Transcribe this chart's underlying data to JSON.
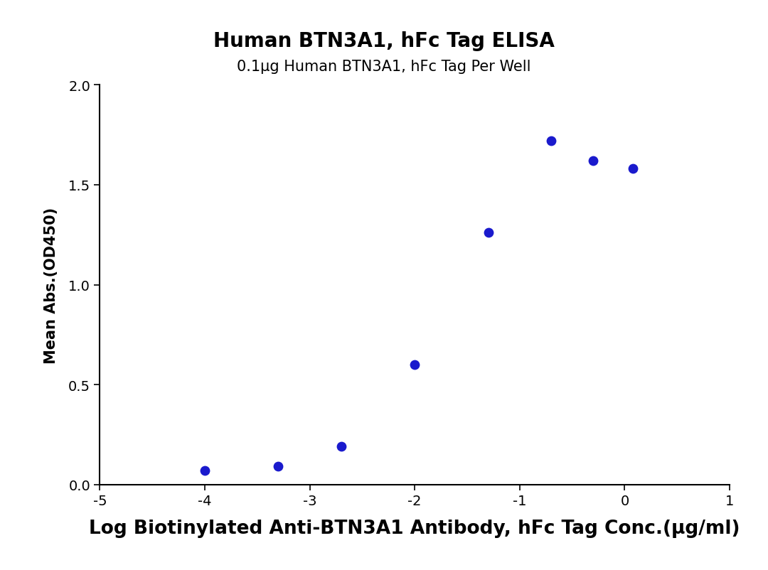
{
  "title": "Human BTN3A1, hFc Tag ELISA",
  "subtitle": "0.1μg Human BTN3A1, hFc Tag Per Well",
  "xlabel": "Log Biotinylated Anti-BTN3A1 Antibody, hFc Tag Conc.(μg/ml)",
  "ylabel": "Mean Abs.(OD450)",
  "data_x": [
    -4,
    -3.3,
    -2.7,
    -2,
    -1.3,
    -0.7,
    -0.3,
    0.08
  ],
  "data_y": [
    0.07,
    0.09,
    0.19,
    0.6,
    1.26,
    1.72,
    1.62,
    1.58
  ],
  "xlim": [
    -5,
    1
  ],
  "ylim": [
    0,
    2.0
  ],
  "xticks": [
    -5,
    -4,
    -3,
    -2,
    -1,
    0,
    1
  ],
  "yticks": [
    0.0,
    0.5,
    1.0,
    1.5,
    2.0
  ],
  "curve_color": "#1a1acd",
  "dot_color": "#1a1acd",
  "background_color": "#ffffff",
  "title_fontsize": 20,
  "subtitle_fontsize": 15,
  "xlabel_fontsize": 19,
  "ylabel_fontsize": 15,
  "tick_fontsize": 14,
  "line_width": 2.5,
  "dot_size": 80
}
